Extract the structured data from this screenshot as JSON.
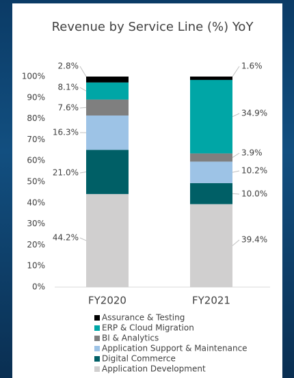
{
  "chart_data": {
    "type": "stacked_bar",
    "title": "Revenue by Service Line (%) YoY",
    "categories": [
      "FY2020",
      "FY2021"
    ],
    "series": [
      {
        "name": "Application Development",
        "color": "#d0cfcf",
        "values": [
          44.2,
          39.4
        ],
        "value_labels": [
          "44.2%",
          "39.4%"
        ]
      },
      {
        "name": "Digital Commerce",
        "color": "#005f66",
        "values": [
          21.0,
          10.0
        ],
        "value_labels": [
          "21.0%",
          "10.0%"
        ]
      },
      {
        "name": "Application Support & Maintenance",
        "color": "#9dc3e6",
        "values": [
          16.3,
          10.2
        ],
        "value_labels": [
          "16.3%",
          "10.2%"
        ]
      },
      {
        "name": "BI & Analytics",
        "color": "#7f7f7f",
        "values": [
          7.6,
          3.9
        ],
        "value_labels": [
          "7.6%",
          "3.9%"
        ]
      },
      {
        "name": "ERP & Cloud Migration",
        "color": "#00a6a6",
        "values": [
          8.1,
          34.9
        ],
        "value_labels": [
          "8.1%",
          "34.9%"
        ]
      },
      {
        "name": "Assurance & Testing",
        "color": "#000000",
        "values": [
          2.8,
          1.6
        ],
        "value_labels": [
          "2.8%",
          "1.6%"
        ]
      }
    ],
    "ylim": [
      0,
      100
    ],
    "yticks": [
      {
        "value": 0,
        "label": "0%"
      },
      {
        "value": 10,
        "label": "10%"
      },
      {
        "value": 20,
        "label": "20%"
      },
      {
        "value": 30,
        "label": "30%"
      },
      {
        "value": 40,
        "label": "40%"
      },
      {
        "value": 50,
        "label": "50%"
      },
      {
        "value": 60,
        "label": "60%"
      },
      {
        "value": 70,
        "label": "70%"
      },
      {
        "value": 80,
        "label": "80%"
      },
      {
        "value": 90,
        "label": "90%"
      },
      {
        "value": 100,
        "label": "100%"
      }
    ],
    "legend": "bottom"
  }
}
